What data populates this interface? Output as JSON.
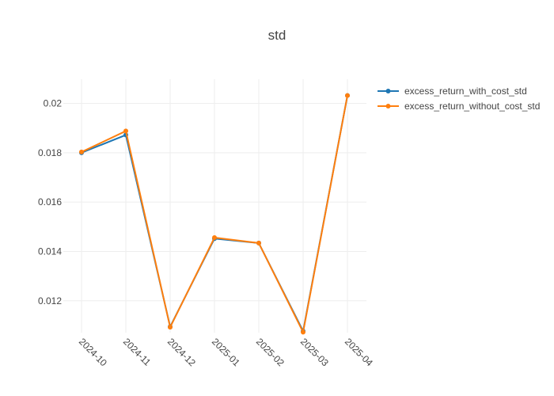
{
  "chart_data": {
    "type": "line",
    "title": "std",
    "xlabel": "",
    "ylabel": "",
    "categories": [
      "2024-10",
      "2024-11",
      "2024-12",
      "2025-01",
      "2025-02",
      "2025-03",
      "2025-04"
    ],
    "series": [
      {
        "name": "excess_return_with_cost_std",
        "color": "#1f77b4",
        "values": [
          0.018,
          0.01872,
          0.01095,
          0.01452,
          0.01434,
          0.01077,
          0.02032
        ]
      },
      {
        "name": "excess_return_without_cost_std",
        "color": "#ff7f0e",
        "values": [
          0.01803,
          0.01888,
          0.01093,
          0.01456,
          0.01434,
          0.01073,
          0.02032
        ]
      }
    ],
    "ylim": [
      0.01071,
      0.02098
    ],
    "yticks": [
      0.012,
      0.014,
      0.016,
      0.018,
      0.02
    ],
    "ytick_labels": [
      "0.012",
      "0.014",
      "0.016",
      "0.018",
      "0.02"
    ],
    "grid": true,
    "legend_position": "top-right",
    "markers": true
  }
}
